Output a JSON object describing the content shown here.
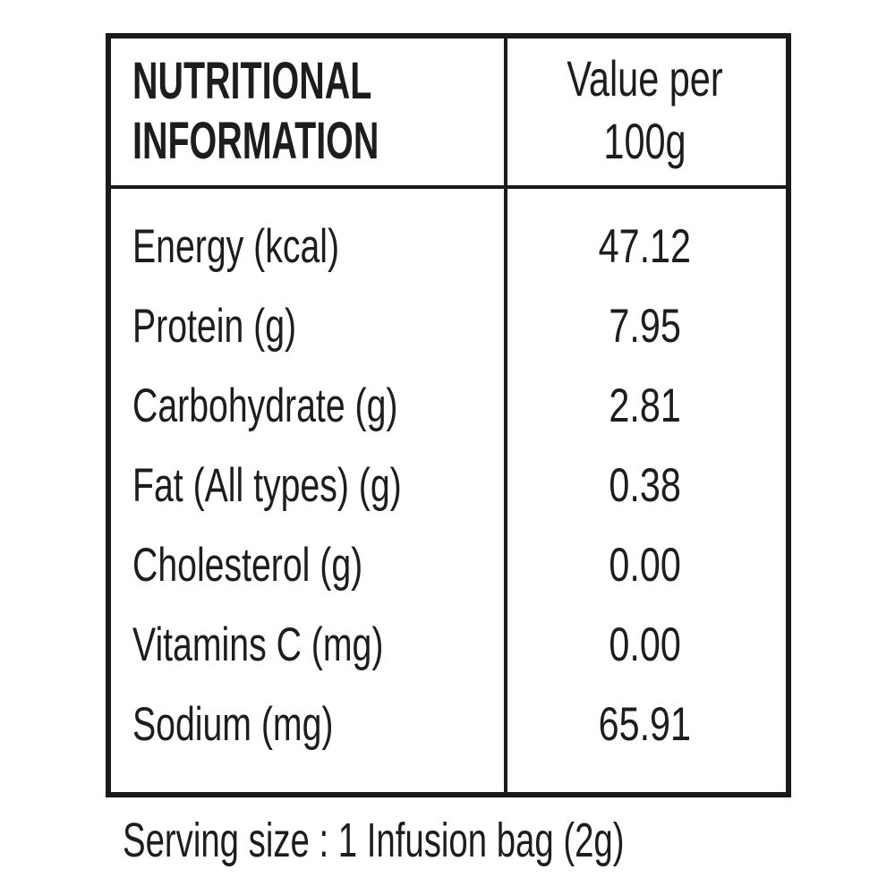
{
  "table": {
    "header": {
      "col1_line1": "NUTRITIONAL",
      "col1_line2": "INFORMATION",
      "col2_line1": "Value per",
      "col2_line2": "100g"
    },
    "rows": [
      {
        "label": "Energy (kcal)",
        "value": "47.12"
      },
      {
        "label": "Protein (g)",
        "value": "7.95"
      },
      {
        "label": "Carbohydrate (g)",
        "value": "2.81"
      },
      {
        "label": "Fat (All types) (g)",
        "value": "0.38"
      },
      {
        "label": "Cholesterol (g)",
        "value": "0.00"
      },
      {
        "label": "Vitamins C (mg)",
        "value": "0.00"
      },
      {
        "label": "Sodium (mg)",
        "value": "65.91"
      }
    ]
  },
  "footer": {
    "serving_size": "Serving size : 1 Infusion bag (2g)"
  },
  "colors": {
    "border": "#1b1b1b",
    "text": "#1d1d1d",
    "background": "#ffffff"
  }
}
